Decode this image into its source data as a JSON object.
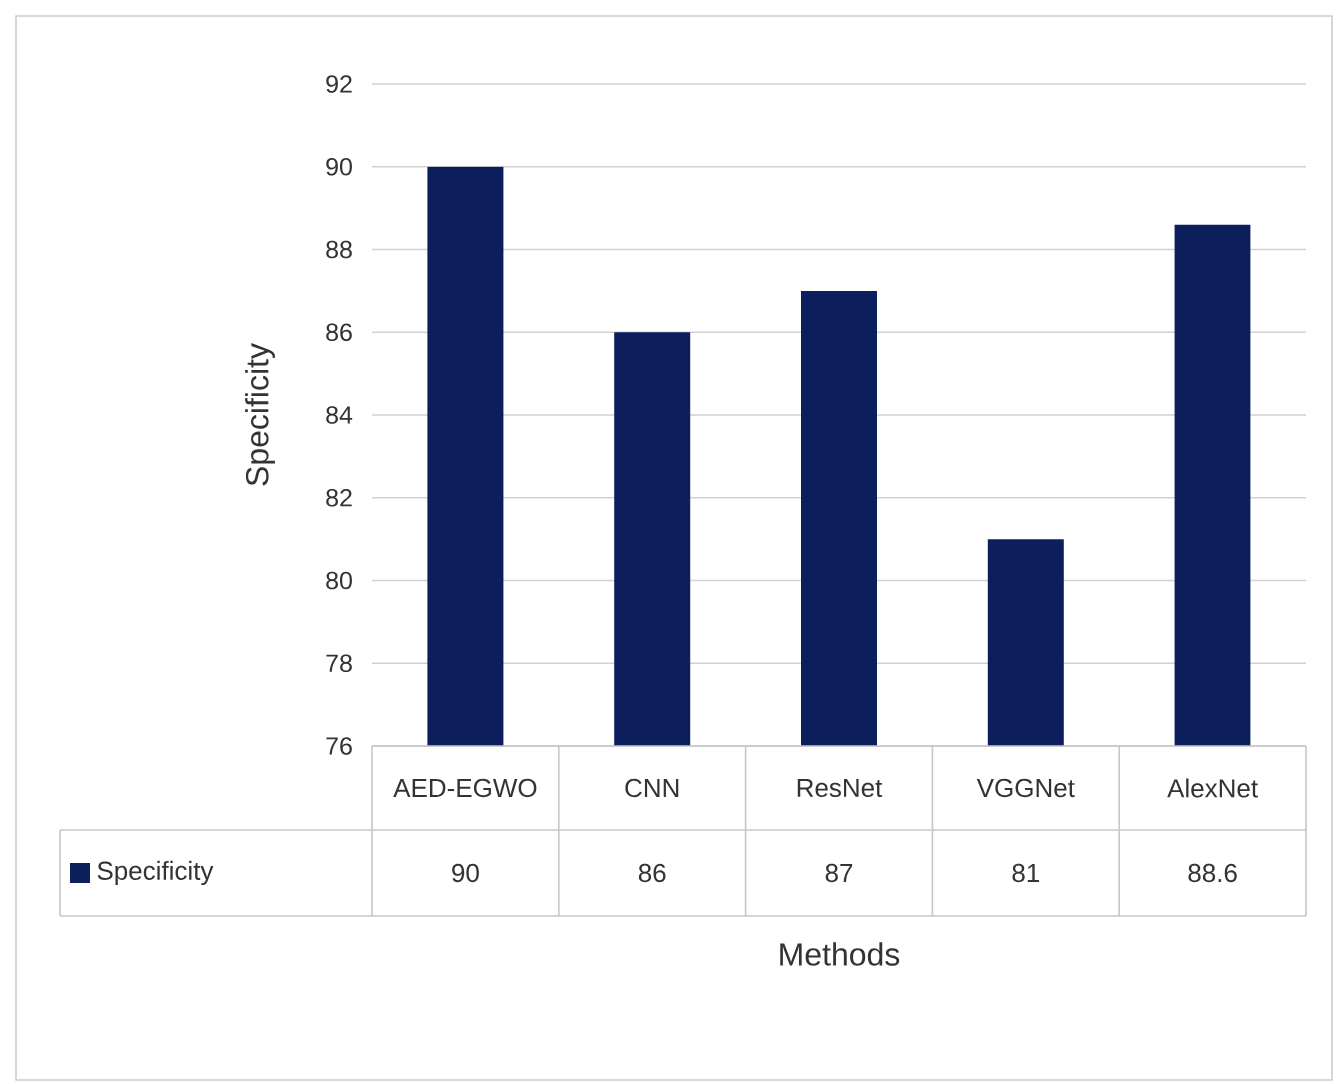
{
  "chart_data": {
    "type": "bar",
    "xlabel": "Methods",
    "ylabel": "Specificity",
    "categories": [
      "AED-EGWO",
      "CNN",
      "ResNet",
      "VGGNet",
      "AlexNet"
    ],
    "series": [
      {
        "name": "Specificity",
        "color": "#0c1f5c",
        "values": [
          90,
          86,
          87,
          81,
          88.6
        ]
      }
    ],
    "ylim": [
      76,
      92
    ],
    "yticks": [
      76,
      78,
      80,
      82,
      84,
      86,
      88,
      90,
      92
    ],
    "grid": "y",
    "legend": "bottom left",
    "data_labels": true
  }
}
